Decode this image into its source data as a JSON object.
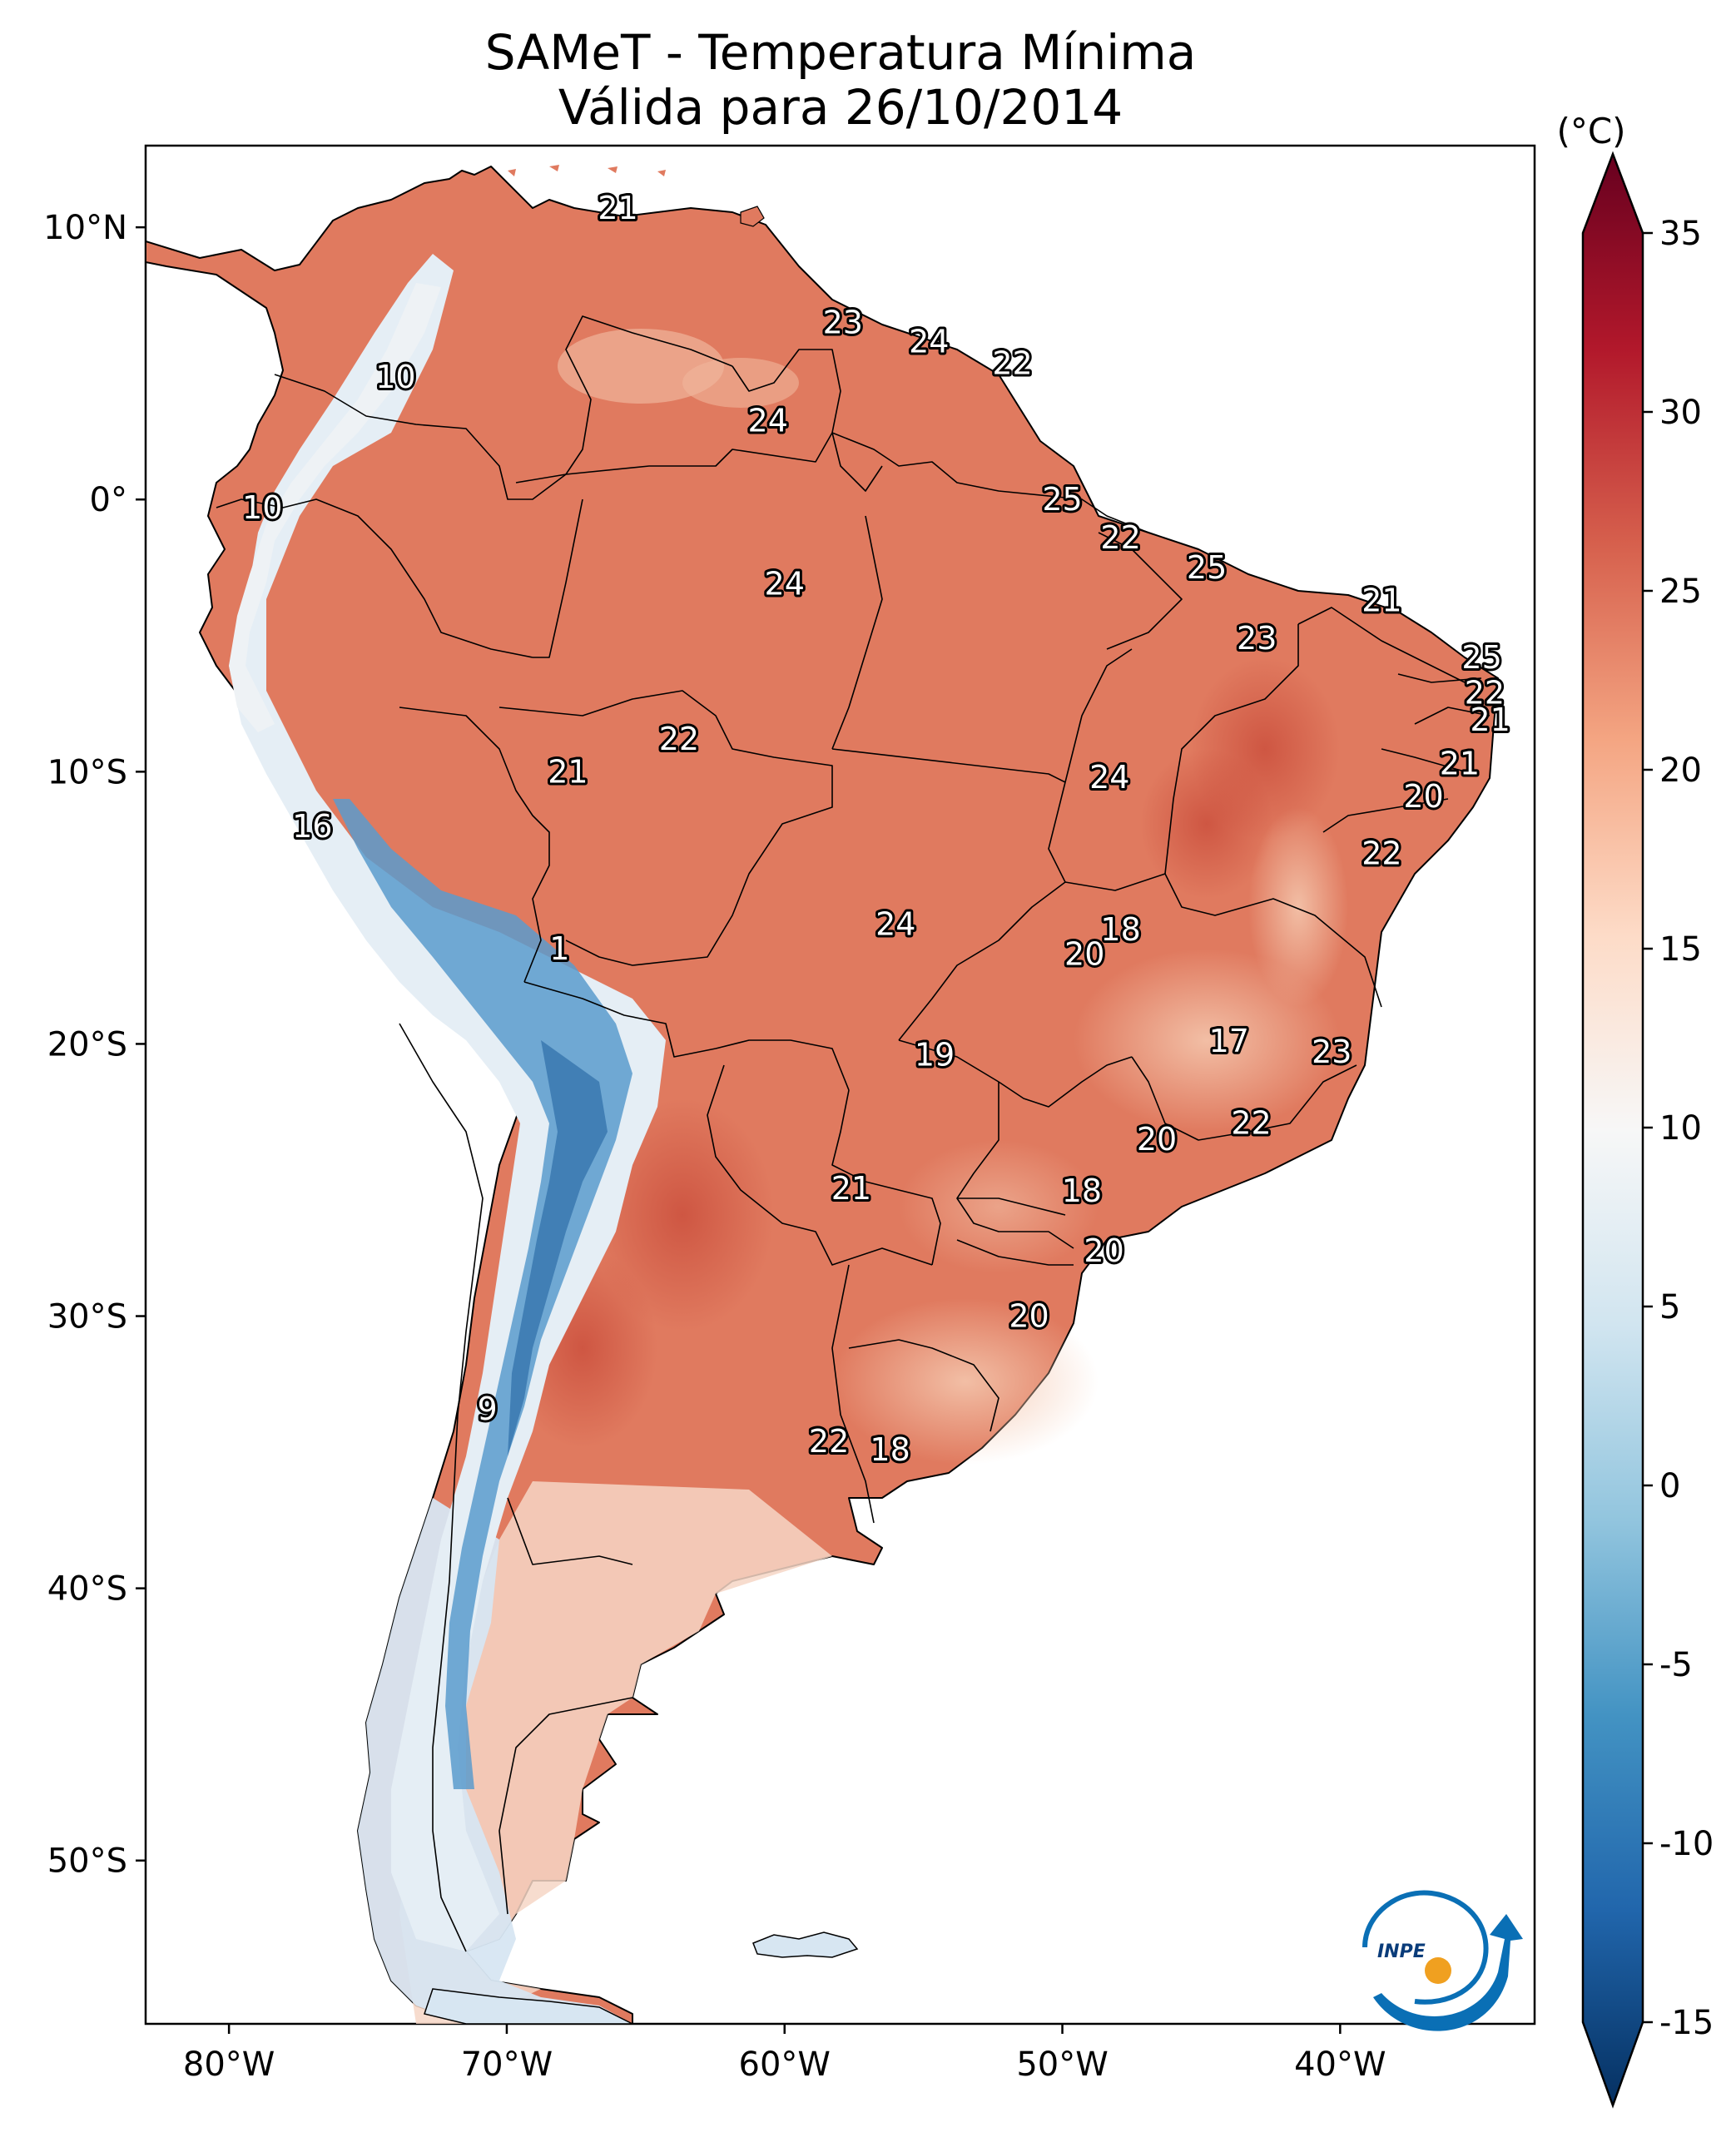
{
  "title": "SAMeT - Temperatura Mínima",
  "subtitle": "Válida para 26/10/2014",
  "colorbar": {
    "unit": "(°C)",
    "ticks": [
      "35",
      "30",
      "25",
      "20",
      "15",
      "10",
      "5",
      "0",
      "-5",
      "-10",
      "-15"
    ],
    "colors": [
      "#053061",
      "#2166ac",
      "#4393c3",
      "#92c5de",
      "#d1e5f0",
      "#f7f7f7",
      "#fddbc7",
      "#f4a582",
      "#d6604d",
      "#b2182b",
      "#67001f"
    ]
  },
  "axes": {
    "lon_ticks": [
      "80°W",
      "70°W",
      "60°W",
      "50°W",
      "40°W"
    ],
    "lat_ticks": [
      "10°N",
      "0°",
      "10°S",
      "20°S",
      "30°S",
      "40°S",
      "50°S"
    ]
  },
  "logo": {
    "text": "INPE"
  },
  "chart_data": {
    "type": "heatmap",
    "title": "SAMeT - Temperatura Mínima",
    "subtitle": "Válida para 26/10/2014",
    "xlabel": "",
    "ylabel": "",
    "xlim": [
      -83,
      -33
    ],
    "ylim": [
      -56,
      13
    ],
    "zlim": [
      -15,
      35
    ],
    "z_unit": "(°C)",
    "colormap": "RdBu_r",
    "point_labels": [
      {
        "lon": -66.0,
        "lat": 10.7,
        "value": "21"
      },
      {
        "lon": -74.0,
        "lat": 4.5,
        "value": "10"
      },
      {
        "lon": -78.8,
        "lat": -0.3,
        "value": "10"
      },
      {
        "lon": -57.9,
        "lat": 6.5,
        "value": "23"
      },
      {
        "lon": -54.8,
        "lat": 5.8,
        "value": "24"
      },
      {
        "lon": -51.8,
        "lat": 5.0,
        "value": "22"
      },
      {
        "lon": -60.6,
        "lat": 2.9,
        "value": "24"
      },
      {
        "lon": -50.0,
        "lat": 0.0,
        "value": "25"
      },
      {
        "lon": -47.9,
        "lat": -1.4,
        "value": "22"
      },
      {
        "lon": -60.0,
        "lat": -3.1,
        "value": "24"
      },
      {
        "lon": -44.8,
        "lat": -2.5,
        "value": "25"
      },
      {
        "lon": -38.5,
        "lat": -3.7,
        "value": "21"
      },
      {
        "lon": -43.0,
        "lat": -5.1,
        "value": "23"
      },
      {
        "lon": -34.9,
        "lat": -5.8,
        "value": "25"
      },
      {
        "lon": -34.8,
        "lat": -7.1,
        "value": "22"
      },
      {
        "lon": -34.6,
        "lat": -8.1,
        "value": "21"
      },
      {
        "lon": -63.8,
        "lat": -8.8,
        "value": "22"
      },
      {
        "lon": -67.8,
        "lat": -10.0,
        "value": "21"
      },
      {
        "lon": -35.7,
        "lat": -9.7,
        "value": "21"
      },
      {
        "lon": -48.3,
        "lat": -10.2,
        "value": "24"
      },
      {
        "lon": -37.0,
        "lat": -10.9,
        "value": "20"
      },
      {
        "lon": -77.0,
        "lat": -12.0,
        "value": "16"
      },
      {
        "lon": -38.5,
        "lat": -13.0,
        "value": "22"
      },
      {
        "lon": -56.0,
        "lat": -15.6,
        "value": "24"
      },
      {
        "lon": -47.9,
        "lat": -15.8,
        "value": "18"
      },
      {
        "lon": -49.2,
        "lat": -16.7,
        "value": "20"
      },
      {
        "lon": -68.1,
        "lat": -16.5,
        "value": "1"
      },
      {
        "lon": -54.6,
        "lat": -20.4,
        "value": "19"
      },
      {
        "lon": -44.0,
        "lat": -19.9,
        "value": "17"
      },
      {
        "lon": -40.3,
        "lat": -20.3,
        "value": "23"
      },
      {
        "lon": -43.2,
        "lat": -22.9,
        "value": "22"
      },
      {
        "lon": -46.6,
        "lat": -23.5,
        "value": "20"
      },
      {
        "lon": -57.6,
        "lat": -25.3,
        "value": "21"
      },
      {
        "lon": -49.3,
        "lat": -25.4,
        "value": "18"
      },
      {
        "lon": -48.5,
        "lat": -27.6,
        "value": "20"
      },
      {
        "lon": -51.2,
        "lat": -30.0,
        "value": "20"
      },
      {
        "lon": -70.7,
        "lat": -33.4,
        "value": "9"
      },
      {
        "lon": -58.4,
        "lat": -34.6,
        "value": "22"
      },
      {
        "lon": -56.2,
        "lat": -34.9,
        "value": "18"
      }
    ]
  }
}
